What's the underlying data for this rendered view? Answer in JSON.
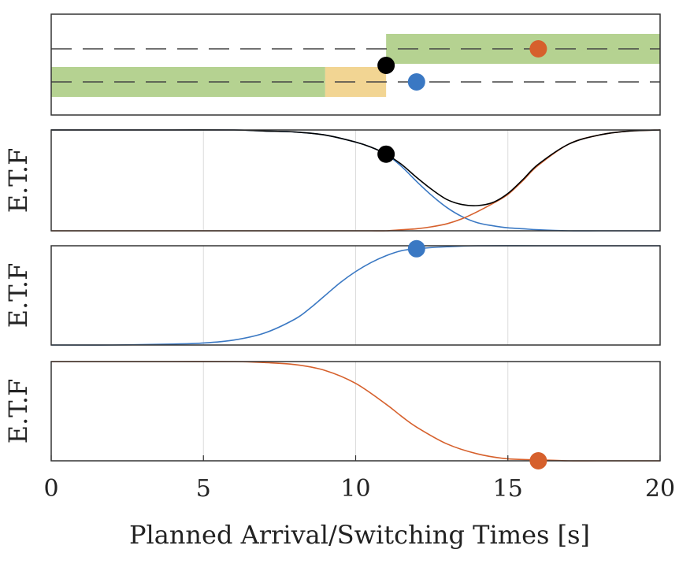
{
  "chart_data": [
    {
      "type": "area",
      "panel": "lanes",
      "xlim": [
        0,
        20
      ],
      "grid": false,
      "lanes": [
        {
          "lane": "upper",
          "dashed_reference": true
        },
        {
          "lane": "lower",
          "dashed_reference": true
        }
      ],
      "bands": [
        {
          "lane": "lower",
          "x": [
            0,
            9
          ],
          "color": "#b5d291"
        },
        {
          "lane": "lower",
          "x": [
            9,
            11
          ],
          "color": "#f2d593"
        },
        {
          "lane": "upper",
          "x": [
            11,
            20
          ],
          "color": "#b5d291"
        }
      ],
      "markers": [
        {
          "x": 11,
          "lane": "between",
          "color": "#000000"
        },
        {
          "x": 12,
          "lane": "lower",
          "color": "#3a78c3"
        },
        {
          "x": 16,
          "lane": "upper",
          "color": "#d6602c"
        }
      ]
    },
    {
      "type": "line",
      "panel": "etf-1",
      "ylabel": "E.T.F",
      "xlim": [
        0,
        20
      ],
      "ylim": [
        0,
        1
      ],
      "grid": true,
      "x": [
        0,
        2,
        4,
        6,
        7,
        8,
        9,
        10,
        10.5,
        11,
        11.5,
        12,
        12.5,
        13,
        13.5,
        14,
        14.5,
        15,
        15.5,
        16,
        17,
        18,
        19,
        20
      ],
      "series": [
        {
          "color": "#000000",
          "values": [
            1,
            1,
            1,
            1,
            0.99,
            0.98,
            0.95,
            0.88,
            0.83,
            0.76,
            0.66,
            0.53,
            0.41,
            0.31,
            0.26,
            0.25,
            0.28,
            0.37,
            0.51,
            0.66,
            0.86,
            0.95,
            0.99,
            1
          ]
        },
        {
          "color": "#3a78c3",
          "values": [
            1,
            1,
            1,
            1,
            0.99,
            0.98,
            0.95,
            0.88,
            0.83,
            0.76,
            0.64,
            0.49,
            0.35,
            0.23,
            0.14,
            0.08,
            0.05,
            0.03,
            0.02,
            0.01,
            0,
            0,
            0,
            0
          ]
        },
        {
          "color": "#d6602c",
          "values": [
            0,
            0,
            0,
            0,
            0,
            0,
            0,
            0,
            0,
            0,
            0.01,
            0.02,
            0.04,
            0.07,
            0.12,
            0.19,
            0.27,
            0.36,
            0.5,
            0.65,
            0.86,
            0.95,
            0.99,
            1
          ]
        }
      ],
      "markers": [
        {
          "x": 11,
          "y": 0.76,
          "color": "#000000"
        }
      ]
    },
    {
      "type": "line",
      "panel": "etf-2",
      "ylabel": "E.T.F",
      "xlim": [
        0,
        20
      ],
      "ylim": [
        0,
        1
      ],
      "grid": true,
      "x": [
        0,
        2,
        4,
        5,
        6,
        7,
        8,
        8.5,
        9,
        9.5,
        10,
        10.5,
        11,
        11.5,
        12,
        13,
        14,
        16,
        18,
        20
      ],
      "series": [
        {
          "color": "#3a78c3",
          "values": [
            0,
            0,
            0.01,
            0.02,
            0.05,
            0.12,
            0.26,
            0.37,
            0.5,
            0.63,
            0.74,
            0.83,
            0.9,
            0.95,
            0.97,
            0.99,
            1,
            1,
            1,
            1
          ]
        }
      ],
      "markers": [
        {
          "x": 12,
          "y": 0.97,
          "color": "#3a78c3"
        }
      ]
    },
    {
      "type": "line",
      "panel": "etf-3",
      "ylabel": "E.T.F",
      "xlabel": "Planned Arrival/Switching Times [s]",
      "xlim": [
        0,
        20
      ],
      "ylim": [
        0,
        1
      ],
      "xticks": [
        "0",
        "5",
        "10",
        "15",
        "20"
      ],
      "grid": true,
      "x": [
        0,
        2,
        4,
        6,
        7,
        8,
        9,
        10,
        11,
        11.5,
        12,
        13,
        14,
        15,
        16,
        17,
        18,
        20
      ],
      "series": [
        {
          "color": "#d6602c",
          "values": [
            1,
            1,
            1,
            1,
            0.99,
            0.97,
            0.91,
            0.78,
            0.57,
            0.45,
            0.34,
            0.17,
            0.07,
            0.02,
            0.01,
            0,
            0,
            0
          ]
        }
      ],
      "markers": [
        {
          "x": 16,
          "y": 0,
          "color": "#d6602c"
        }
      ]
    }
  ]
}
